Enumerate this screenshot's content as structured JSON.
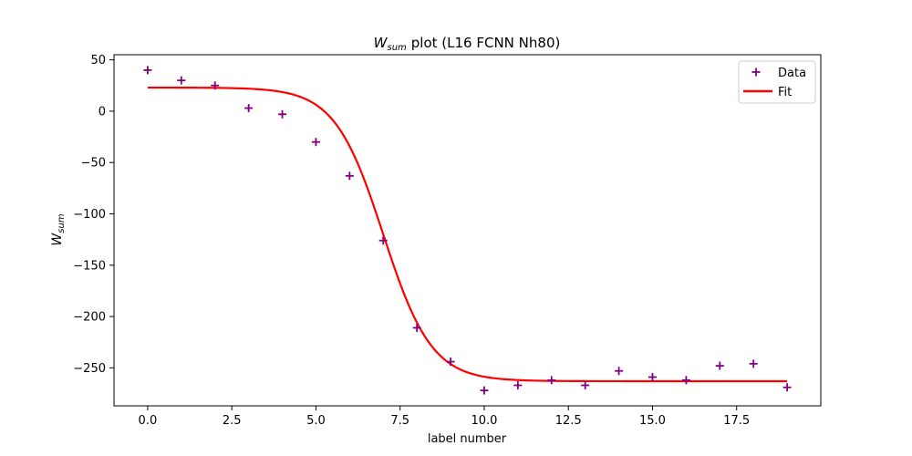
{
  "chart_data": {
    "type": "scatter",
    "title": "plot (L16 FCNN Nh80)",
    "title_math": {
      "base": "W",
      "sub": "sum"
    },
    "xlabel": "label number",
    "ylabel_math": {
      "base": "W",
      "sub": "sum"
    },
    "xlim": [
      -1,
      20
    ],
    "ylim": [
      -287,
      55
    ],
    "xticks": [
      0,
      2.5,
      5,
      7.5,
      10,
      12.5,
      15,
      17.5
    ],
    "xtick_labels": [
      "0.0",
      "2.5",
      "5.0",
      "7.5",
      "10.0",
      "12.5",
      "15.0",
      "17.5"
    ],
    "yticks": [
      50,
      0,
      -50,
      -100,
      -150,
      -200,
      -250
    ],
    "ytick_labels": [
      "50",
      "0",
      "−50",
      "−100",
      "−150",
      "−200",
      "−250"
    ],
    "grid": false,
    "legend_position": "top-right",
    "series": [
      {
        "name": "Data",
        "kind": "scatter",
        "marker": "plus",
        "color": "#800080",
        "x": [
          0,
          1,
          2,
          3,
          4,
          5,
          6,
          7,
          8,
          9,
          10,
          11,
          12,
          13,
          14,
          15,
          16,
          17,
          18,
          19
        ],
        "y": [
          40,
          30,
          25,
          3,
          -3,
          -30,
          -63,
          -126,
          -211,
          -244,
          -272,
          -267,
          -262,
          -267,
          -253,
          -259,
          -262,
          -248,
          -246,
          -269
        ]
      },
      {
        "name": "Fit",
        "kind": "line",
        "color": "#ff0000",
        "model": "sigmoid",
        "params": {
          "top": 23,
          "bottom": -263,
          "center": 7.0,
          "scale": 0.72
        },
        "x_range": [
          0,
          19
        ]
      }
    ]
  }
}
